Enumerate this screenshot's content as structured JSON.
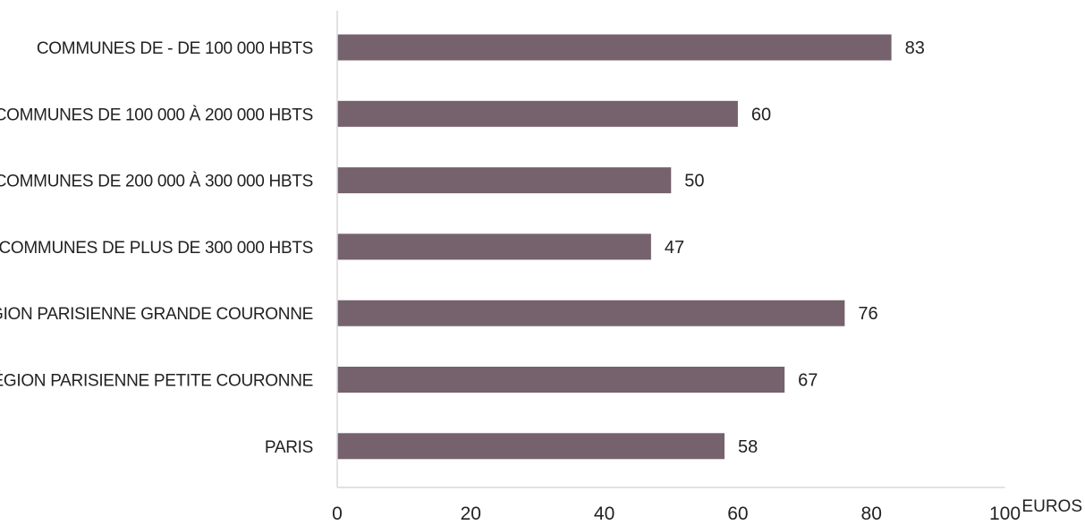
{
  "chart_data": {
    "type": "bar",
    "orientation": "horizontal",
    "categories": [
      "COMMUNES DE - DE 100 000 HBTS",
      "COMMUNES DE 100 000 À 200 000 HBTS",
      "COMMUNES DE 200 000 À 300 000 HBTS",
      "COMMUNES DE PLUS DE 300 000 HBTS",
      "RÉGION PARISIENNE GRANDE COURONNE",
      "RÉGION PARISIENNE PETITE COURONNE",
      "PARIS"
    ],
    "values": [
      83,
      60,
      50,
      47,
      76,
      67,
      58
    ],
    "value_labels": [
      "83",
      "60",
      "50",
      "47",
      "76",
      "67",
      "58"
    ],
    "xlabel": "EUROS",
    "ylabel": "",
    "xlim": [
      0,
      100
    ],
    "xticks": [
      0,
      20,
      40,
      60,
      80,
      100
    ],
    "xtick_labels": [
      "0",
      "20",
      "40",
      "60",
      "80",
      "100"
    ],
    "grid": false,
    "legend": "none",
    "bar_color": "#75626c",
    "axis_color": "#d9d9d9"
  }
}
